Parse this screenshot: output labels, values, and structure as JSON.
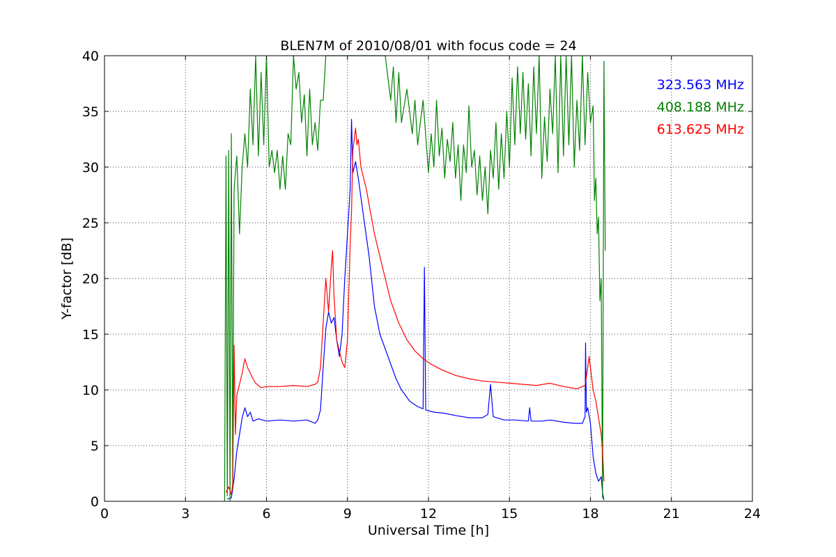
{
  "chart_data": {
    "type": "line",
    "title": "BLEN7M of 2010/08/01 with focus code = 24",
    "xlabel": "Universal Time [h]",
    "ylabel": "Y-factor [dB]",
    "xlim": [
      0,
      24
    ],
    "ylim": [
      0,
      40
    ],
    "xticks": [
      0,
      3,
      6,
      9,
      12,
      15,
      18,
      21,
      24
    ],
    "yticks": [
      0,
      5,
      10,
      15,
      20,
      25,
      30,
      35,
      40
    ],
    "grid": true,
    "legend_position": "top-right",
    "series": [
      {
        "name": "323.563 MHz",
        "color": "#0000ff",
        "points": [
          [
            4.55,
            0.2
          ],
          [
            4.7,
            0.3
          ],
          [
            4.8,
            2.0
          ],
          [
            4.9,
            4.5
          ],
          [
            5.0,
            6.0
          ],
          [
            5.1,
            7.5
          ],
          [
            5.2,
            8.4
          ],
          [
            5.3,
            7.6
          ],
          [
            5.4,
            8.0
          ],
          [
            5.5,
            7.2
          ],
          [
            5.7,
            7.4
          ],
          [
            6.0,
            7.2
          ],
          [
            6.5,
            7.3
          ],
          [
            7.0,
            7.2
          ],
          [
            7.5,
            7.3
          ],
          [
            7.8,
            7.0
          ],
          [
            7.9,
            7.3
          ],
          [
            8.0,
            8.2
          ],
          [
            8.1,
            12.0
          ],
          [
            8.2,
            15.5
          ],
          [
            8.3,
            17.0
          ],
          [
            8.4,
            16.0
          ],
          [
            8.5,
            16.5
          ],
          [
            8.6,
            14.5
          ],
          [
            8.7,
            13.0
          ],
          [
            8.8,
            15.0
          ],
          [
            8.9,
            20.0
          ],
          [
            9.0,
            24.0
          ],
          [
            9.1,
            28.0
          ],
          [
            9.15,
            34.3
          ],
          [
            9.2,
            29.5
          ],
          [
            9.3,
            30.5
          ],
          [
            9.4,
            29.0
          ],
          [
            9.6,
            25.5
          ],
          [
            9.8,
            22.0
          ],
          [
            10.0,
            17.5
          ],
          [
            10.2,
            15.0
          ],
          [
            10.5,
            13.0
          ],
          [
            10.8,
            11.0
          ],
          [
            11.0,
            10.0
          ],
          [
            11.3,
            9.0
          ],
          [
            11.6,
            8.5
          ],
          [
            11.8,
            8.3
          ],
          [
            11.85,
            21.0
          ],
          [
            11.9,
            8.2
          ],
          [
            12.2,
            8.0
          ],
          [
            12.6,
            7.9
          ],
          [
            13.0,
            7.7
          ],
          [
            13.5,
            7.5
          ],
          [
            14.0,
            7.5
          ],
          [
            14.2,
            7.8
          ],
          [
            14.3,
            10.5
          ],
          [
            14.4,
            7.6
          ],
          [
            14.8,
            7.3
          ],
          [
            15.2,
            7.3
          ],
          [
            15.7,
            7.2
          ],
          [
            15.75,
            8.4
          ],
          [
            15.8,
            7.2
          ],
          [
            16.2,
            7.2
          ],
          [
            16.5,
            7.3
          ],
          [
            17.0,
            7.1
          ],
          [
            17.4,
            7.0
          ],
          [
            17.7,
            7.0
          ],
          [
            17.8,
            7.6
          ],
          [
            17.82,
            14.2
          ],
          [
            17.85,
            8.0
          ],
          [
            17.9,
            8.4
          ],
          [
            18.0,
            7.0
          ],
          [
            18.1,
            4.0
          ],
          [
            18.2,
            2.5
          ],
          [
            18.3,
            1.8
          ],
          [
            18.4,
            2.2
          ],
          [
            18.45,
            0.8
          ],
          [
            18.5,
            0.1
          ]
        ]
      },
      {
        "name": "408.188 MHz",
        "color": "#008000",
        "points": [
          [
            4.45,
            0.0
          ],
          [
            4.5,
            31.0
          ],
          [
            4.55,
            0.5
          ],
          [
            4.6,
            31.5
          ],
          [
            4.65,
            0.0
          ],
          [
            4.7,
            33.0
          ],
          [
            4.75,
            1.0
          ],
          [
            4.8,
            28.0
          ],
          [
            4.9,
            31.0
          ],
          [
            5.0,
            24.0
          ],
          [
            5.1,
            30.0
          ],
          [
            5.2,
            33.0
          ],
          [
            5.3,
            30.0
          ],
          [
            5.4,
            37.0
          ],
          [
            5.5,
            32.0
          ],
          [
            5.6,
            40.0
          ],
          [
            5.7,
            31.0
          ],
          [
            5.8,
            38.5
          ],
          [
            5.9,
            32.0
          ],
          [
            6.0,
            40.0
          ],
          [
            6.1,
            30.0
          ],
          [
            6.2,
            31.5
          ],
          [
            6.3,
            29.5
          ],
          [
            6.4,
            31.5
          ],
          [
            6.5,
            28.0
          ],
          [
            6.6,
            31.0
          ],
          [
            6.7,
            28.0
          ],
          [
            6.8,
            33.0
          ],
          [
            6.9,
            32.0
          ],
          [
            7.0,
            40.0
          ],
          [
            7.1,
            37.0
          ],
          [
            7.2,
            38.5
          ],
          [
            7.3,
            34.0
          ],
          [
            7.4,
            36.5
          ],
          [
            7.5,
            31.0
          ],
          [
            7.6,
            37.0
          ],
          [
            7.7,
            32.0
          ],
          [
            7.8,
            34.0
          ],
          [
            7.9,
            31.5
          ],
          [
            8.0,
            36.0
          ],
          [
            8.1,
            36.0
          ],
          [
            8.2,
            40.0
          ],
          [
            10.4,
            40.0
          ],
          [
            10.6,
            36.0
          ],
          [
            10.7,
            39.0
          ],
          [
            10.8,
            34.0
          ],
          [
            10.9,
            38.5
          ],
          [
            11.0,
            34.0
          ],
          [
            11.2,
            37.0
          ],
          [
            11.4,
            33.0
          ],
          [
            11.5,
            36.0
          ],
          [
            11.6,
            32.0
          ],
          [
            11.8,
            36.0
          ],
          [
            12.0,
            29.5
          ],
          [
            12.1,
            33.0
          ],
          [
            12.2,
            30.0
          ],
          [
            12.3,
            36.0
          ],
          [
            12.4,
            31.0
          ],
          [
            12.5,
            33.5
          ],
          [
            12.6,
            29.0
          ],
          [
            12.7,
            32.5
          ],
          [
            12.8,
            30.5
          ],
          [
            12.9,
            34.0
          ],
          [
            13.0,
            29.0
          ],
          [
            13.1,
            32.0
          ],
          [
            13.2,
            27.0
          ],
          [
            13.3,
            32.0
          ],
          [
            13.4,
            29.5
          ],
          [
            13.5,
            35.5
          ],
          [
            13.6,
            30.0
          ],
          [
            13.7,
            31.5
          ],
          [
            13.8,
            27.5
          ],
          [
            13.9,
            31.0
          ],
          [
            14.0,
            27.0
          ],
          [
            14.1,
            30.0
          ],
          [
            14.2,
            25.8
          ],
          [
            14.3,
            31.5
          ],
          [
            14.4,
            29.0
          ],
          [
            14.5,
            34.0
          ],
          [
            14.6,
            28.0
          ],
          [
            14.7,
            33.0
          ],
          [
            14.8,
            29.0
          ],
          [
            14.9,
            35.0
          ],
          [
            15.0,
            30.0
          ],
          [
            15.1,
            38.0
          ],
          [
            15.2,
            32.0
          ],
          [
            15.3,
            39.0
          ],
          [
            15.4,
            33.0
          ],
          [
            15.5,
            38.5
          ],
          [
            15.6,
            32.5
          ],
          [
            15.7,
            37.5
          ],
          [
            15.8,
            31.0
          ],
          [
            15.9,
            39.0
          ],
          [
            16.0,
            33.0
          ],
          [
            16.1,
            40.0
          ],
          [
            16.2,
            29.0
          ],
          [
            16.3,
            34.5
          ],
          [
            16.4,
            30.5
          ],
          [
            16.5,
            37.0
          ],
          [
            16.6,
            33.0
          ],
          [
            16.7,
            40.0
          ],
          [
            16.8,
            29.5
          ],
          [
            16.9,
            40.0
          ],
          [
            17.0,
            31.0
          ],
          [
            17.1,
            40.0
          ],
          [
            17.2,
            32.0
          ],
          [
            17.3,
            40.0
          ],
          [
            17.4,
            30.0
          ],
          [
            17.5,
            36.0
          ],
          [
            17.6,
            31.5
          ],
          [
            17.7,
            40.0
          ],
          [
            17.8,
            32.0
          ],
          [
            17.9,
            38.5
          ],
          [
            18.0,
            34.0
          ],
          [
            18.1,
            35.5
          ],
          [
            18.15,
            27.0
          ],
          [
            18.2,
            29.0
          ],
          [
            18.25,
            24.0
          ],
          [
            18.3,
            25.5
          ],
          [
            18.35,
            18.0
          ],
          [
            18.4,
            20.0
          ],
          [
            18.45,
            0.3
          ],
          [
            18.5,
            39.5
          ],
          [
            18.55,
            22.5
          ]
        ]
      },
      {
        "name": "613.625 MHz",
        "color": "#ff0000",
        "points": [
          [
            4.5,
            0.8
          ],
          [
            4.6,
            1.3
          ],
          [
            4.7,
            0.6
          ],
          [
            4.75,
            1.6
          ],
          [
            4.8,
            14.0
          ],
          [
            4.85,
            6.0
          ],
          [
            4.9,
            9.5
          ],
          [
            5.0,
            10.5
          ],
          [
            5.1,
            11.5
          ],
          [
            5.2,
            12.8
          ],
          [
            5.3,
            12.0
          ],
          [
            5.4,
            11.5
          ],
          [
            5.5,
            11.0
          ],
          [
            5.6,
            10.6
          ],
          [
            5.8,
            10.2
          ],
          [
            6.0,
            10.3
          ],
          [
            6.5,
            10.3
          ],
          [
            7.0,
            10.4
          ],
          [
            7.5,
            10.3
          ],
          [
            7.8,
            10.5
          ],
          [
            7.9,
            10.7
          ],
          [
            8.0,
            12.0
          ],
          [
            8.1,
            16.0
          ],
          [
            8.2,
            20.0
          ],
          [
            8.3,
            17.0
          ],
          [
            8.4,
            21.0
          ],
          [
            8.45,
            22.5
          ],
          [
            8.5,
            18.5
          ],
          [
            8.6,
            14.5
          ],
          [
            8.7,
            13.5
          ],
          [
            8.8,
            12.5
          ],
          [
            8.9,
            12.0
          ],
          [
            9.0,
            14.5
          ],
          [
            9.1,
            23.0
          ],
          [
            9.15,
            26.0
          ],
          [
            9.2,
            31.5
          ],
          [
            9.3,
            33.5
          ],
          [
            9.35,
            32.0
          ],
          [
            9.4,
            32.5
          ],
          [
            9.5,
            30.0
          ],
          [
            9.7,
            28.0
          ],
          [
            10.0,
            24.0
          ],
          [
            10.3,
            21.0
          ],
          [
            10.6,
            18.0
          ],
          [
            10.9,
            16.0
          ],
          [
            11.2,
            14.5
          ],
          [
            11.5,
            13.5
          ],
          [
            11.8,
            12.8
          ],
          [
            12.1,
            12.3
          ],
          [
            12.5,
            11.8
          ],
          [
            13.0,
            11.3
          ],
          [
            13.5,
            11.0
          ],
          [
            14.0,
            10.8
          ],
          [
            14.5,
            10.7
          ],
          [
            15.0,
            10.6
          ],
          [
            15.5,
            10.5
          ],
          [
            16.0,
            10.4
          ],
          [
            16.5,
            10.6
          ],
          [
            17.0,
            10.3
          ],
          [
            17.5,
            10.1
          ],
          [
            17.8,
            10.4
          ],
          [
            17.9,
            12.0
          ],
          [
            17.95,
            13.0
          ],
          [
            18.0,
            12.0
          ],
          [
            18.1,
            10.0
          ],
          [
            18.2,
            9.0
          ],
          [
            18.3,
            7.5
          ],
          [
            18.4,
            6.0
          ],
          [
            18.45,
            4.5
          ],
          [
            18.5,
            1.8
          ]
        ]
      }
    ]
  }
}
